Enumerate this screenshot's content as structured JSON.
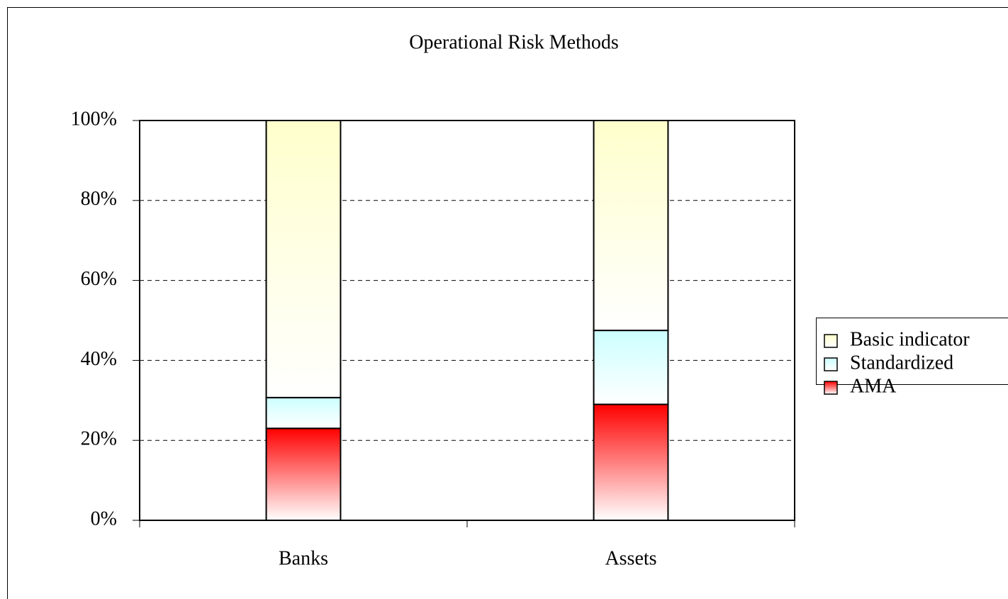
{
  "chart_data": {
    "type": "stacked_bar",
    "title": "Operational Risk Methods",
    "categories": [
      "Banks",
      "Assets"
    ],
    "series": [
      {
        "name": "AMA",
        "color": "#ff0000",
        "values": [
          23,
          29
        ]
      },
      {
        "name": "Standardized",
        "color": "#ccffff",
        "values": [
          7.7,
          18.5
        ]
      },
      {
        "name": "Basic indicator",
        "color": "#ffffcc",
        "values": [
          69.3,
          52.5
        ]
      }
    ],
    "ylim": [
      0,
      100
    ],
    "yticks": [
      {
        "value": 0,
        "label": "0%"
      },
      {
        "value": 20,
        "label": "20%"
      },
      {
        "value": 40,
        "label": "40%"
      },
      {
        "value": 60,
        "label": "60%"
      },
      {
        "value": 80,
        "label": "80%"
      },
      {
        "value": 100,
        "label": "100%"
      }
    ],
    "grid": true,
    "legend": "right"
  }
}
